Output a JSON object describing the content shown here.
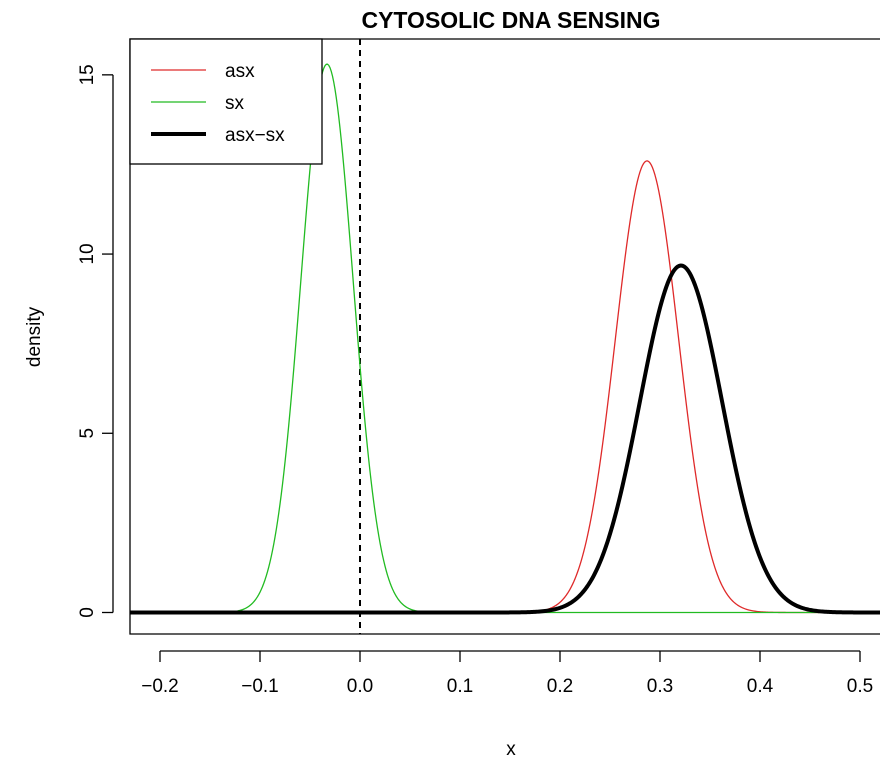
{
  "chart_data": {
    "type": "line",
    "title": "CYTOSOLIC DNA SENSING",
    "xlabel": "x",
    "ylabel": "density",
    "xlim": [
      -0.23,
      0.52
    ],
    "ylim": [
      -0.6,
      16.0
    ],
    "x_ticks": [
      -0.2,
      -0.1,
      0.0,
      0.1,
      0.2,
      0.3,
      0.4,
      0.5
    ],
    "x_tick_labels": [
      "−0.2",
      "−0.1",
      "0.0",
      "0.1",
      "0.2",
      "0.3",
      "0.4",
      "0.5"
    ],
    "y_ticks": [
      0,
      5,
      10,
      15
    ],
    "y_tick_labels": [
      "0",
      "5",
      "10",
      "15"
    ],
    "grid": false,
    "legend_position": "top-left",
    "reference_line": {
      "x": 0.0,
      "style": "dashed"
    },
    "series": [
      {
        "name": "asx",
        "color": "#df2a2a",
        "line_width": 1.3,
        "distribution": "normal",
        "mean": 0.287,
        "sd": 0.0316,
        "peak": 12.6
      },
      {
        "name": "sx",
        "color": "#22bb22",
        "line_width": 1.3,
        "distribution": "normal",
        "mean": -0.033,
        "sd": 0.0261,
        "peak": 15.3
      },
      {
        "name": "asx−sx",
        "color": "#000000",
        "line_width": 4.0,
        "distribution": "normal",
        "mean": 0.321,
        "sd": 0.0412,
        "peak": 9.68
      }
    ]
  }
}
